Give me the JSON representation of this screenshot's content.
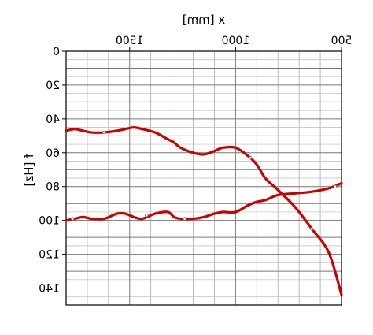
{
  "chart_data": {
    "type": "line",
    "xlabel": "x [mm]",
    "ylabel": "f [Hz]",
    "xlim": [
      500,
      1800
    ],
    "ylim": [
      0,
      150
    ],
    "y_inverted": true,
    "x_axis_position": "top",
    "mirrored_horizontally": true,
    "grid": true,
    "xticks": [
      500,
      1000,
      1500
    ],
    "xtick_labels": [
      "500",
      "1000",
      "1500"
    ],
    "yticks": [
      0,
      20,
      40,
      60,
      80,
      100,
      120,
      140
    ],
    "ytick_labels": [
      "0",
      "20",
      "40",
      "60",
      "80",
      "100",
      "120",
      "140"
    ],
    "series": [
      {
        "color": "#cc0000",
        "x": [
          500,
          560,
          640,
          720,
          800,
          860,
          900,
          940,
          1000,
          1060,
          1100,
          1150,
          1200,
          1260,
          1290,
          1320,
          1380,
          1440,
          1480,
          1520,
          1560,
          1620,
          1680,
          1720,
          1760,
          1800
        ],
        "y": [
          144,
          119,
          105,
          92,
          82,
          75,
          67,
          62,
          57,
          57,
          59,
          61,
          60,
          57,
          54,
          52,
          48,
          46,
          45,
          46,
          47,
          48,
          48,
          47,
          46,
          47
        ]
      },
      {
        "color": "#cc0000",
        "x": [
          500,
          560,
          640,
          720,
          800,
          860,
          900,
          940,
          1000,
          1060,
          1100,
          1150,
          1200,
          1260,
          1290,
          1320,
          1380,
          1440,
          1480,
          1520,
          1560,
          1620,
          1680,
          1720,
          1760,
          1800
        ],
        "y": [
          78,
          81,
          83,
          84,
          85,
          88,
          89,
          91,
          95,
          95,
          96,
          98,
          99,
          99,
          98,
          95,
          96,
          99,
          98,
          96,
          96,
          99,
          99,
          98,
          99,
          100
        ]
      }
    ],
    "markers": [
      {
        "series": 0,
        "x": 640,
        "y": 105
      },
      {
        "series": 0,
        "x": 930,
        "y": 63
      },
      {
        "series": 0,
        "x": 1620,
        "y": 48
      },
      {
        "series": 1,
        "x": 530,
        "y": 80
      },
      {
        "series": 1,
        "x": 1240,
        "y": 99
      },
      {
        "series": 1,
        "x": 1420,
        "y": 97
      },
      {
        "series": 1,
        "x": 1770,
        "y": 99
      }
    ]
  }
}
